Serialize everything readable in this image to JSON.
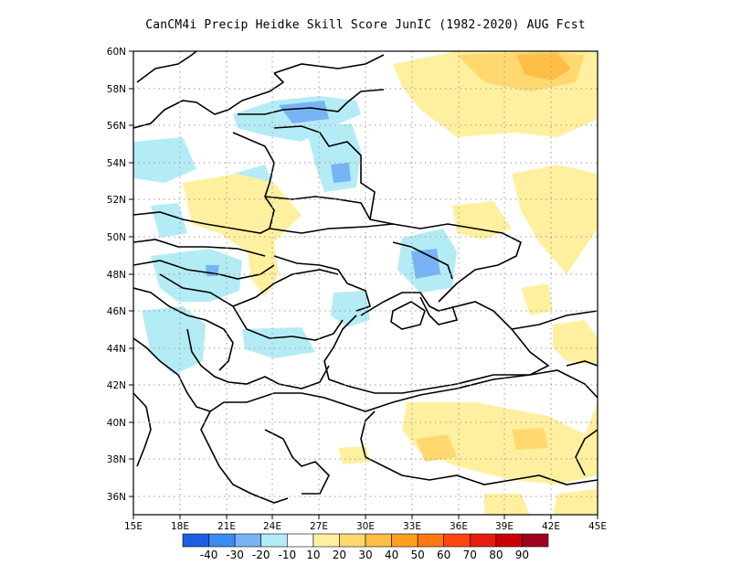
{
  "title": "CanCM4i Precip Heidke Skill Score JunIC (1982-2020) AUG Fcst",
  "map": {
    "lon_range": [
      15,
      45
    ],
    "lat_range": [
      35,
      60
    ],
    "x_ticks": [
      "15E",
      "18E",
      "21E",
      "24E",
      "27E",
      "30E",
      "33E",
      "36E",
      "39E",
      "42E",
      "45E"
    ],
    "y_ticks": [
      "36N",
      "38N",
      "40N",
      "42N",
      "44N",
      "46N",
      "48N",
      "50N",
      "52N",
      "54N",
      "56N",
      "58N",
      "60N"
    ],
    "grid": "dotted"
  },
  "colorbar": {
    "colors": [
      "#1c5fe0",
      "#3a8df0",
      "#78b4f5",
      "#b4ecf5",
      "#ffffff",
      "#fff0a0",
      "#ffd970",
      "#ffbe46",
      "#ffa01e",
      "#ff7814",
      "#ff4610",
      "#e61e10",
      "#c8000a",
      "#a0001e"
    ],
    "labels": [
      "-40",
      "-30",
      "-20",
      "-10",
      "10",
      "20",
      "30",
      "40",
      "50",
      "60",
      "70",
      "80",
      "90"
    ]
  },
  "legend": {
    "colors": {
      "light_blue": "#b4ecf5",
      "mid_blue": "#78b4f5",
      "light_yellow": "#fff0a0",
      "yellow": "#ffd970",
      "orange": "#ffbe46"
    }
  }
}
